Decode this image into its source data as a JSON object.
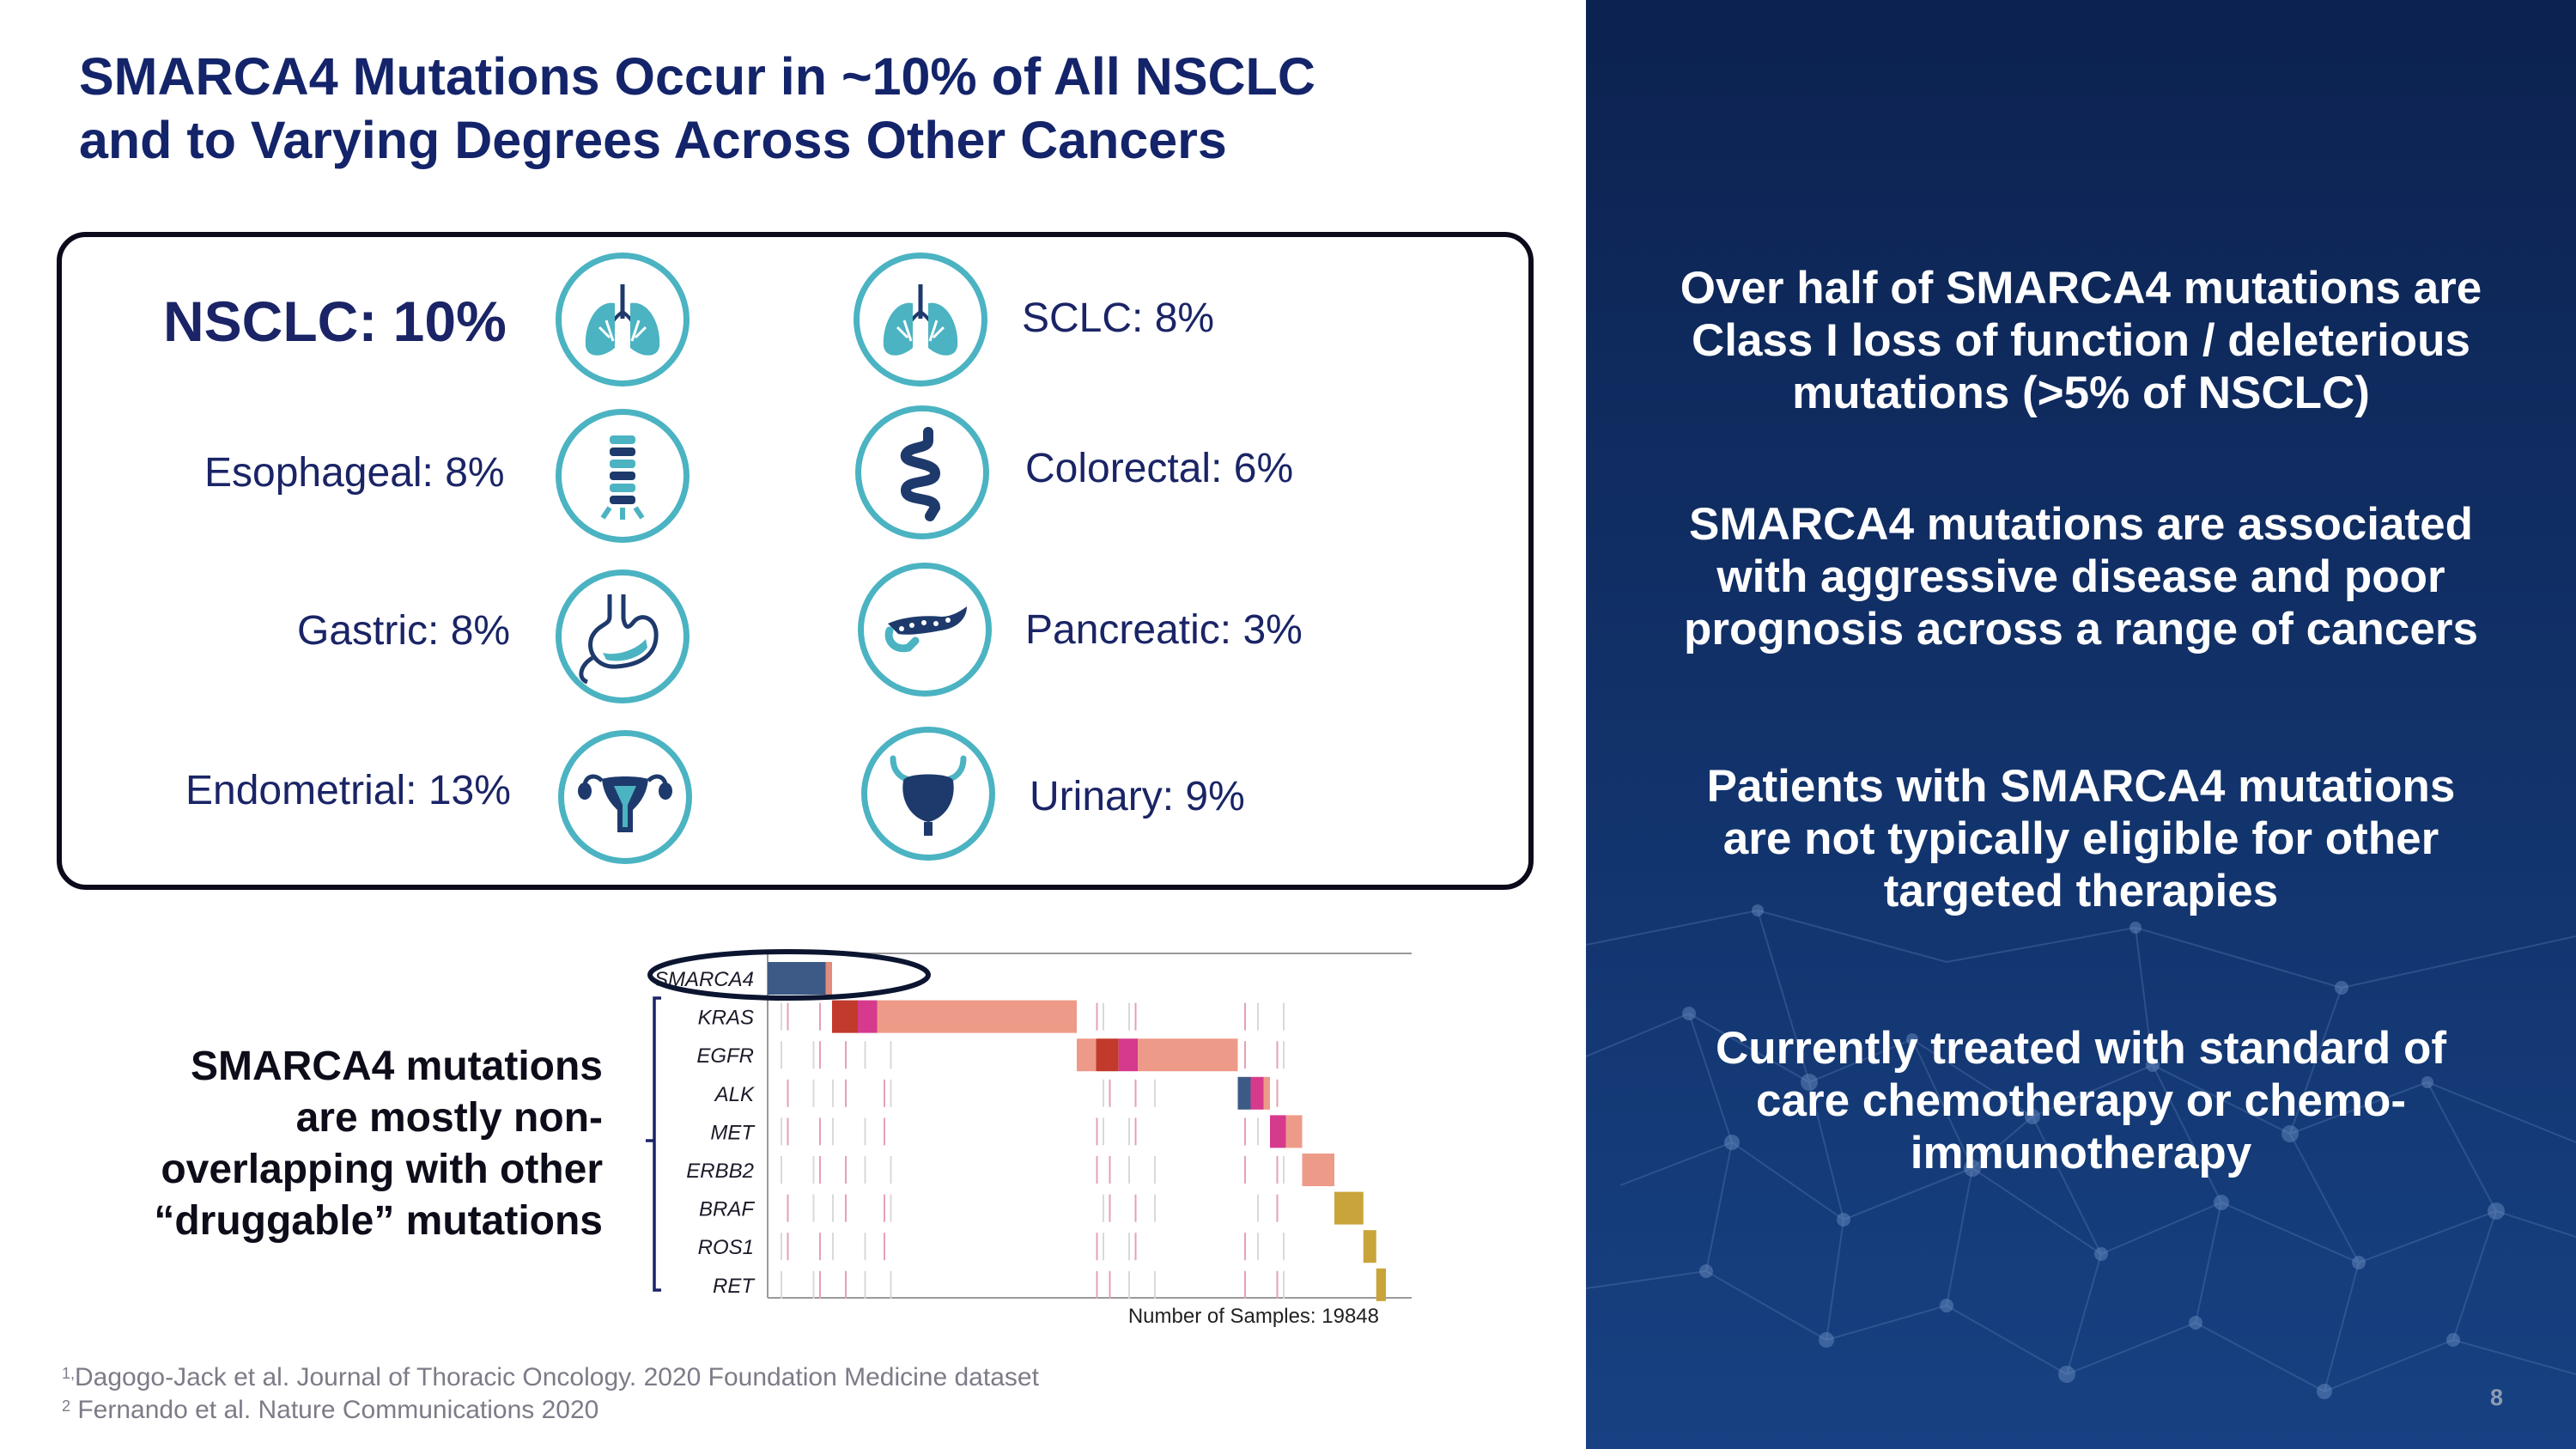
{
  "slide": {
    "title_lines": [
      "SMARCA4 Mutations Occur in ~10% of All NSCLC",
      "and to Varying Degrees Across Other Cancers"
    ],
    "cancers": {
      "nsclc": {
        "name": "NSCLC:",
        "pct": "10%",
        "icon": "lungs-icon"
      },
      "sclc": {
        "name": "SCLC:",
        "pct": "8%",
        "icon": "lungs-icon"
      },
      "esophageal": {
        "name": "Esophageal:",
        "pct": "8%",
        "icon": "esophagus-icon"
      },
      "colorectal": {
        "name": "Colorectal:",
        "pct": "6%",
        "icon": "intestine-icon"
      },
      "gastric": {
        "name": "Gastric:",
        "pct": "8%",
        "icon": "stomach-icon"
      },
      "pancreatic": {
        "name": "Pancreatic:",
        "pct": "3%",
        "icon": "pancreas-icon"
      },
      "endometrial": {
        "name": "Endometrial:",
        "pct": "13%",
        "icon": "uterus-icon"
      },
      "urinary": {
        "name": "Urinary:",
        "pct": "9%",
        "icon": "bladder-icon"
      }
    },
    "note_lines": [
      "SMARCA4 mutations",
      "are mostly non-",
      "overlapping with other",
      "“druggable” mutations"
    ],
    "oncoprint": {
      "genes": [
        "SMARCA4",
        "KRAS",
        "EGFR",
        "ALK",
        "MET",
        "ERBB2",
        "BRAF",
        "ROS1",
        "RET"
      ],
      "sample_label": "Number of Samples: 19848",
      "blocks": [
        {
          "row": 0,
          "start": 0.0,
          "end": 0.09,
          "color": "#3d5a86"
        },
        {
          "row": 0,
          "start": 0.09,
          "end": 0.1,
          "color": "#e08b7c"
        },
        {
          "row": 1,
          "start": 0.1,
          "end": 0.14,
          "color": "#c23a2c"
        },
        {
          "row": 1,
          "start": 0.14,
          "end": 0.17,
          "color": "#d63a8c"
        },
        {
          "row": 1,
          "start": 0.17,
          "end": 0.48,
          "color": "#ee9a88"
        },
        {
          "row": 2,
          "start": 0.48,
          "end": 0.51,
          "color": "#ee9a88"
        },
        {
          "row": 2,
          "start": 0.51,
          "end": 0.545,
          "color": "#c23a2c"
        },
        {
          "row": 2,
          "start": 0.545,
          "end": 0.575,
          "color": "#d63a8c"
        },
        {
          "row": 2,
          "start": 0.575,
          "end": 0.73,
          "color": "#ee9a88"
        },
        {
          "row": 3,
          "start": 0.73,
          "end": 0.75,
          "color": "#3d5a86"
        },
        {
          "row": 3,
          "start": 0.75,
          "end": 0.77,
          "color": "#d63a8c"
        },
        {
          "row": 3,
          "start": 0.77,
          "end": 0.78,
          "color": "#ee9a88"
        },
        {
          "row": 4,
          "start": 0.78,
          "end": 0.805,
          "color": "#d63a8c"
        },
        {
          "row": 4,
          "start": 0.805,
          "end": 0.83,
          "color": "#ee9a88"
        },
        {
          "row": 5,
          "start": 0.83,
          "end": 0.88,
          "color": "#ee9a88"
        },
        {
          "row": 6,
          "start": 0.88,
          "end": 0.925,
          "color": "#c9a43a"
        },
        {
          "row": 7,
          "start": 0.925,
          "end": 0.945,
          "color": "#c9a43a"
        },
        {
          "row": 8,
          "start": 0.945,
          "end": 0.96,
          "color": "#c9a43a"
        }
      ]
    },
    "footnotes": [
      {
        "marker": "1,",
        "text": "Dagogo-Jack et al. Journal of Thoracic Oncology. 2020 Foundation Medicine dataset"
      },
      {
        "marker": "2",
        "text": "Fernando et al. Nature Communications 2020"
      }
    ],
    "bullets": [
      [
        "Over half of SMARCA4 mutations are",
        "Class I loss of function / deleterious",
        "mutations (>5% of NSCLC)"
      ],
      [
        "SMARCA4 mutations are associated",
        "with aggressive disease and poor",
        "prognosis across a range of cancers"
      ],
      [
        "Patients with SMARCA4 mutations",
        "are not typically eligible for other",
        "targeted therapies"
      ],
      [
        "Currently treated with standard of",
        "care chemotherapy or chemo-",
        "immunotherapy"
      ]
    ],
    "page_number": "8",
    "colors": {
      "title": "#14246a",
      "icon_ring": "#4bb3c2",
      "panel": "#0c2250"
    }
  }
}
